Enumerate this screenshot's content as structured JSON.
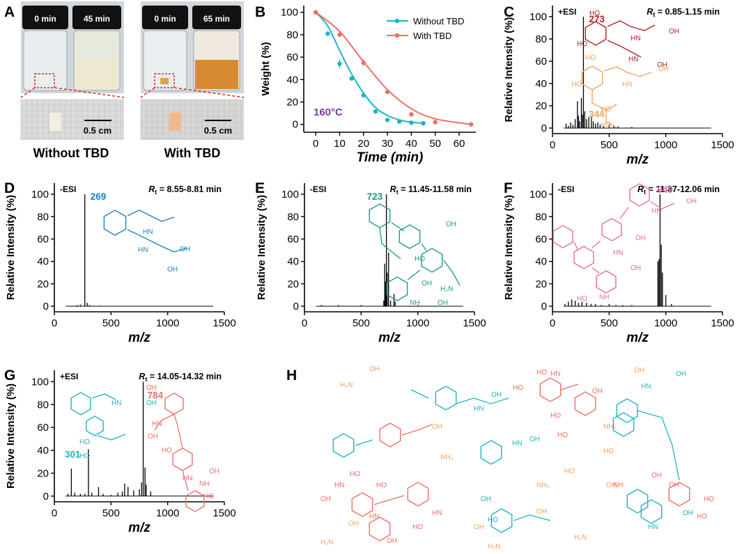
{
  "colors": {
    "teal": "#1bb5c2",
    "red": "#a52323",
    "orange": "#f4a25c",
    "blue": "#1c7fc0",
    "green": "#1a9a8a",
    "pink": "#e56aa4",
    "salmon": "#ee6e66",
    "purple": "#7d3c98"
  },
  "panel_labels": {
    "a": "A",
    "b": "B",
    "c": "C",
    "d": "D",
    "e": "E",
    "f": "F",
    "g": "G",
    "h": "H"
  },
  "panel_a": {
    "vial_labels": [
      "0 min",
      "45 min",
      "0 min",
      "65 min"
    ],
    "scale_bar": "0.5 cm",
    "captions": [
      "Without TBD",
      "With TBD"
    ]
  },
  "chart_data": [
    {
      "panel": "B",
      "type": "line",
      "xlabel": "Time (min)",
      "ylabel": "Weight (%)",
      "xlim": [
        -5,
        67
      ],
      "ylim": [
        -7,
        106
      ],
      "xticks": [
        0,
        10,
        20,
        30,
        40,
        50,
        60
      ],
      "yticks": [
        0,
        20,
        40,
        60,
        80,
        100
      ],
      "annotation": "160°C",
      "series": [
        {
          "name": "Without TBD",
          "color": "#1bb5c2",
          "x": [
            0,
            5,
            10,
            15,
            20,
            25,
            30,
            35,
            40,
            45
          ],
          "y": [
            100,
            81,
            54,
            41,
            26,
            11.5,
            4,
            2.5,
            1.5,
            1
          ],
          "err": [
            0,
            0,
            4,
            0,
            0,
            0,
            0,
            0,
            0,
            0
          ],
          "fit_x": [
            0,
            5,
            10,
            15,
            20,
            25,
            30,
            35,
            40,
            45
          ],
          "fit_y": [
            100,
            88,
            66,
            45,
            28,
            15,
            8,
            4,
            2,
            1
          ]
        },
        {
          "name": "With TBD",
          "color": "#ee6e66",
          "x": [
            0,
            10,
            20,
            30,
            40,
            50,
            65
          ],
          "y": [
            100,
            80,
            55,
            29,
            9,
            2,
            0
          ],
          "err": [
            0,
            0,
            3,
            0,
            0,
            0,
            0
          ],
          "fit_x": [
            0,
            10,
            20,
            30,
            40,
            50,
            65
          ],
          "fit_y": [
            100,
            83,
            56,
            31,
            14,
            5,
            0
          ]
        }
      ]
    },
    {
      "panel": "C",
      "type": "bar",
      "mode": "+ESI",
      "rt": "= 0.85-1.15 min",
      "xlabel": "m/z",
      "ylabel": "Relative Intensity (%)",
      "xlim": [
        0,
        1500
      ],
      "ylim": [
        -5,
        110
      ],
      "xticks": [
        0,
        500,
        1000,
        1500
      ],
      "yticks": [
        0,
        20,
        40,
        60,
        80,
        100
      ],
      "peaks": [
        [
          120,
          4
        ],
        [
          140,
          2
        ],
        [
          160,
          5
        ],
        [
          180,
          3
        ],
        [
          200,
          8
        ],
        [
          220,
          24
        ],
        [
          230,
          11
        ],
        [
          240,
          6
        ],
        [
          255,
          27
        ],
        [
          265,
          12
        ],
        [
          273,
          100
        ],
        [
          285,
          15
        ],
        [
          300,
          8
        ],
        [
          320,
          10
        ],
        [
          344,
          11
        ],
        [
          360,
          6
        ],
        [
          380,
          4
        ],
        [
          400,
          5
        ],
        [
          420,
          3
        ],
        [
          450,
          2
        ],
        [
          500,
          3
        ],
        [
          540,
          2
        ],
        [
          580,
          1.5
        ],
        [
          700,
          1
        ]
      ],
      "labels": [
        {
          "mz": 273,
          "y": 100,
          "text": "273",
          "color": "#a52323",
          "dx": 8,
          "dy": -2
        },
        {
          "mz": 344,
          "y": 11,
          "text": "344",
          "color": "#f4a25c",
          "dx": -4,
          "dy": -8
        }
      ]
    },
    {
      "panel": "D",
      "type": "bar",
      "mode": "-ESI",
      "rt": "= 8.55-8.81 min",
      "xlabel": "m/z",
      "ylabel": "Relative Intensity (%)",
      "xlim": [
        0,
        1500
      ],
      "ylim": [
        -5,
        110
      ],
      "xticks": [
        0,
        500,
        1000,
        1500
      ],
      "yticks": [
        0,
        20,
        40,
        60,
        80,
        100
      ],
      "peaks": [
        [
          200,
          1
        ],
        [
          230,
          1.5
        ],
        [
          269,
          100
        ],
        [
          290,
          3
        ],
        [
          310,
          1
        ],
        [
          400,
          0.5
        ]
      ],
      "labels": [
        {
          "mz": 269,
          "y": 100,
          "text": "269",
          "color": "#1c7fc0",
          "dx": 8,
          "dy": -2
        }
      ]
    },
    {
      "panel": "E",
      "type": "bar",
      "mode": "-ESI",
      "rt": "= 11.45-11.58 min",
      "xlabel": "m/z",
      "ylabel": "Relative Intensity (%)",
      "xlim": [
        0,
        1500
      ],
      "ylim": [
        -5,
        110
      ],
      "xticks": [
        0,
        500,
        1000,
        1500
      ],
      "yticks": [
        0,
        20,
        40,
        60,
        80,
        100
      ],
      "peaks": [
        [
          150,
          1
        ],
        [
          300,
          1
        ],
        [
          500,
          1
        ],
        [
          700,
          5
        ],
        [
          708,
          38
        ],
        [
          715,
          22
        ],
        [
          723,
          100
        ],
        [
          730,
          30
        ],
        [
          742,
          48
        ],
        [
          760,
          5
        ],
        [
          790,
          11
        ],
        [
          800,
          4
        ],
        [
          1000,
          1
        ]
      ],
      "labels": [
        {
          "mz": 723,
          "y": 100,
          "text": "723",
          "color": "#1a9a8a",
          "dx": -28,
          "dy": -2
        }
      ]
    },
    {
      "panel": "F",
      "type": "bar",
      "mode": "-ESI",
      "rt": "= 11.87-12.06 min",
      "xlabel": "m/z",
      "ylabel": "Relative Intensity (%)",
      "xlim": [
        0,
        1500
      ],
      "ylim": [
        -5,
        110
      ],
      "xticks": [
        0,
        500,
        1000,
        1500
      ],
      "yticks": [
        0,
        20,
        40,
        60,
        80,
        100
      ],
      "peaks": [
        [
          110,
          2
        ],
        [
          140,
          4
        ],
        [
          170,
          6
        ],
        [
          200,
          5
        ],
        [
          230,
          3
        ],
        [
          260,
          4
        ],
        [
          300,
          3
        ],
        [
          340,
          2
        ],
        [
          380,
          2
        ],
        [
          430,
          1
        ],
        [
          500,
          2
        ],
        [
          560,
          1
        ],
        [
          620,
          1
        ],
        [
          700,
          1
        ],
        [
          930,
          40
        ],
        [
          940,
          42
        ],
        [
          949,
          100
        ],
        [
          960,
          55
        ],
        [
          970,
          30
        ],
        [
          1000,
          10
        ],
        [
          1050,
          2
        ]
      ],
      "labels": [
        {
          "mz": 949,
          "y": 100,
          "text": "949",
          "color": "#e56aa4",
          "dx": -4,
          "dy": -12
        }
      ]
    },
    {
      "panel": "G",
      "type": "bar",
      "mode": "+ESI",
      "rt": "= 14.05-14.32 min",
      "xlabel": "m/z",
      "ylabel": "Relative Intensity (%)",
      "xlim": [
        0,
        1500
      ],
      "ylim": [
        -5,
        110
      ],
      "xticks": [
        0,
        500,
        1000,
        1500
      ],
      "yticks": [
        0,
        20,
        40,
        60,
        80,
        100
      ],
      "peaks": [
        [
          120,
          2
        ],
        [
          150,
          24
        ],
        [
          180,
          3
        ],
        [
          230,
          2
        ],
        [
          270,
          2
        ],
        [
          301,
          41
        ],
        [
          330,
          3
        ],
        [
          390,
          8
        ],
        [
          430,
          2
        ],
        [
          500,
          1
        ],
        [
          560,
          3
        ],
        [
          600,
          4
        ],
        [
          620,
          11
        ],
        [
          650,
          8
        ],
        [
          700,
          5
        ],
        [
          750,
          6
        ],
        [
          770,
          12
        ],
        [
          784,
          100
        ],
        [
          800,
          25
        ],
        [
          810,
          10
        ],
        [
          850,
          4
        ]
      ],
      "labels": [
        {
          "mz": 784,
          "y": 100,
          "text": "784",
          "color": "#ee6e66",
          "dx": 6,
          "dy": 14
        },
        {
          "mz": 301,
          "y": 41,
          "text": "301",
          "color": "#1bb5c2",
          "dx": -34,
          "dy": 2
        }
      ]
    }
  ],
  "structure_labels": {
    "c_red": [
      "HO",
      "HO",
      "HN",
      "OH",
      "HN",
      "OH"
    ],
    "c_orange": [
      "HO",
      "HO",
      "HN",
      "OH",
      "HO",
      "HO"
    ],
    "d_blue": [
      "HN",
      "OH",
      "HN",
      "OH"
    ],
    "e_green": [
      "OH",
      "HO",
      "OH",
      "H₂N",
      "NH",
      "OH"
    ],
    "f_pink": [
      "OH",
      "HN",
      "OH",
      "HN",
      "OH",
      "NH",
      "HO"
    ],
    "g_teal": [
      "HN",
      "OH",
      "HO",
      "HO"
    ],
    "g_salmon": [
      "OH",
      "HN",
      "OH",
      "HO",
      "HN",
      "OH",
      "NH",
      "HO"
    ],
    "h_orange": [
      "H₂N",
      "OH",
      "OH",
      "NH₂",
      "OH",
      "NH₂",
      "HO",
      "OH",
      "H₂N",
      "OH",
      "H₂N",
      "OH",
      "OH",
      "H₂N",
      "NH₂",
      "HO"
    ],
    "h_teal": [
      "HN",
      "OH",
      "HN",
      "OH",
      "HN",
      "OH",
      "OH",
      "HO",
      "HN",
      "OH"
    ],
    "h_salmon": [
      "HO",
      "HO",
      "HN",
      "OH",
      "HO",
      "HO",
      "HN",
      "OH",
      "HO",
      "HO",
      "HN",
      "OH",
      "HO",
      "HN",
      "OH",
      "HO",
      "HO",
      "NH",
      "OH"
    ]
  }
}
